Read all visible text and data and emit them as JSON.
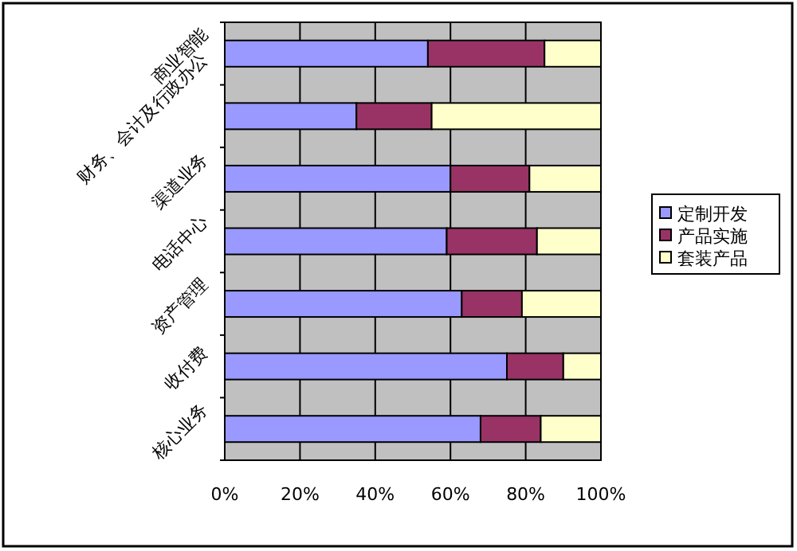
{
  "chart_data": {
    "type": "bar",
    "orientation": "horizontal",
    "stacked": true,
    "categories": [
      "商业智能",
      "财务、会计及行政办公",
      "渠道业务",
      "电话中心",
      "资产管理",
      "收付费",
      "核心业务"
    ],
    "series": [
      {
        "name": "定制开发",
        "color": "#9999ff",
        "values": [
          54,
          35,
          60,
          59,
          63,
          75,
          68
        ]
      },
      {
        "name": "产品实施",
        "color": "#993366",
        "values": [
          31,
          20,
          21,
          24,
          16,
          15,
          16
        ]
      },
      {
        "name": "套装产品",
        "color": "#ffffcc",
        "values": [
          15,
          45,
          19,
          17,
          21,
          10,
          16
        ]
      }
    ],
    "xlim": [
      0,
      100
    ],
    "xticks": [
      {
        "value": 0,
        "label": "0%"
      },
      {
        "value": 20,
        "label": "20%"
      },
      {
        "value": 40,
        "label": "40%"
      },
      {
        "value": 60,
        "label": "60%"
      },
      {
        "value": 80,
        "label": "80%"
      },
      {
        "value": 100,
        "label": "100%"
      }
    ],
    "grid": "x",
    "legend": "right"
  }
}
